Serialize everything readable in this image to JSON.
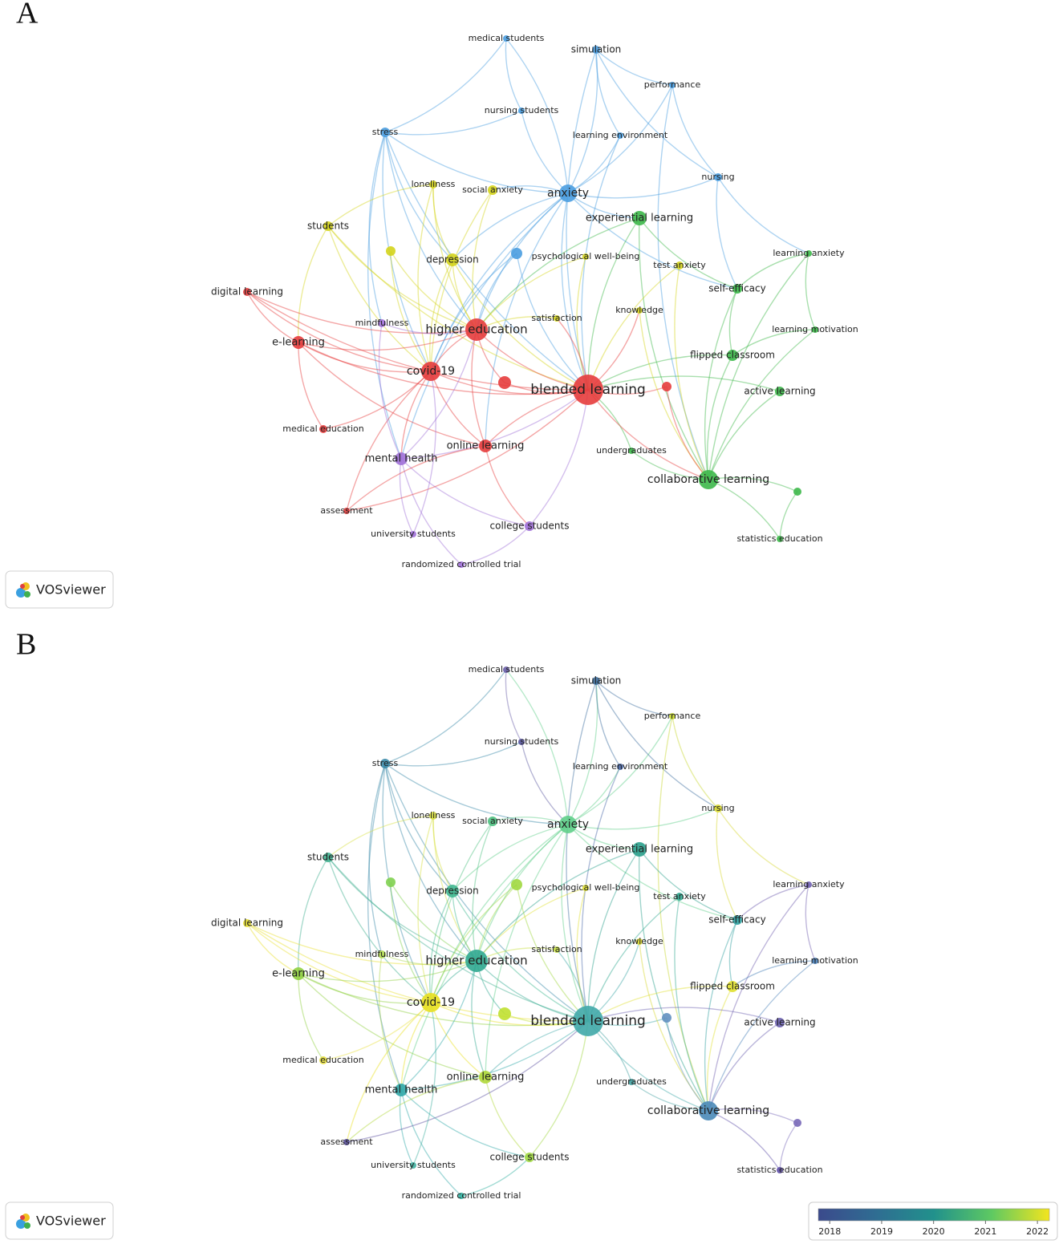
{
  "panels": [
    {
      "label": "A",
      "node_colors": [
        "#4a9de0",
        "#4a9de0",
        "#4a9de0",
        "#4a9de0",
        "#4a9de0",
        "#4a9de0",
        "#4a9de0",
        "#4a9de0",
        "#d4d41c",
        "#d4d41c",
        "#3db84a",
        "#d4d41c",
        "#d4d41c",
        "#d4d41c",
        "#4a9de0",
        "#d4d41c",
        "#d4d41c",
        "#3db84a",
        "#3db84a",
        "#e63c3c",
        "#d4d41c",
        "#d4d41c",
        "#a070d8",
        "#e63c3c",
        "#3db84a",
        "#e63c3c",
        "#3db84a",
        "#e63c3c",
        "#e63c3c",
        "#e63c3c",
        "#e63c3c",
        "#3db84a",
        "#e63c3c",
        "#e63c3c",
        "#3db84a",
        "#a070d8",
        "#3db84a",
        "#3db84a",
        "#e63c3c",
        "#a070d8",
        "#a070d8",
        "#3db84a",
        "#a070d8"
      ]
    },
    {
      "label": "B",
      "node_colors": [
        "#6a5fa8",
        "#3d6fa0",
        "#c8d830",
        "#5a58a0",
        "#4a68a8",
        "#3a8aa8",
        "#d8d830",
        "#5fcf8a",
        "#d8e040",
        "#4dc080",
        "#2aa08c",
        "#40b090",
        "#80d050",
        "#40b890",
        "#a0d840",
        "#e0e030",
        "#30a890",
        "#7060b0",
        "#30a0a0",
        "#e8e030",
        "#d8d830",
        "#c8e040",
        "#b0d850",
        "#30a890",
        "#4a80b8",
        "#90d040",
        "#e0e030",
        "#e8e020",
        "#c0e030",
        "#40a8a8",
        "#6090c0",
        "#6a5fb0",
        "#e8e040",
        "#b0d838",
        "#40a0a0",
        "#30a8a8",
        "#4a8ab8",
        "#7868b8",
        "#5a50a0",
        "#a0d840",
        "#40b0a0",
        "#6050a8",
        "#30b0a0"
      ],
      "legend": {
        "range": [
          2017.78,
          2022.23
        ],
        "ticks": [
          2018,
          2019,
          2020,
          2021,
          2022
        ]
      }
    }
  ],
  "nodes": [
    "medical students",
    "simulation",
    "performance",
    "nursing students",
    "learning environment",
    "stress",
    "nursing",
    "anxiety",
    "loneliness",
    "social anxiety",
    "experiential learning",
    "students",
    null,
    "depression",
    null,
    "psychological well-being",
    "test anxiety",
    "learning anxiety",
    "self-efficacy",
    "digital learning",
    "knowledge",
    "satisfaction",
    "mindfulness",
    "higher education",
    "learning motivation",
    "e-learning",
    "flipped classroom",
    "covid-19",
    null,
    "blended learning",
    null,
    "active learning",
    "medical education",
    "online learning",
    "undergraduates",
    "mental health",
    "collaborative learning",
    null,
    "assessment",
    "college students",
    "university students",
    "statistics education",
    "randomized controlled trial"
  ],
  "logo": "VOSviewer"
}
